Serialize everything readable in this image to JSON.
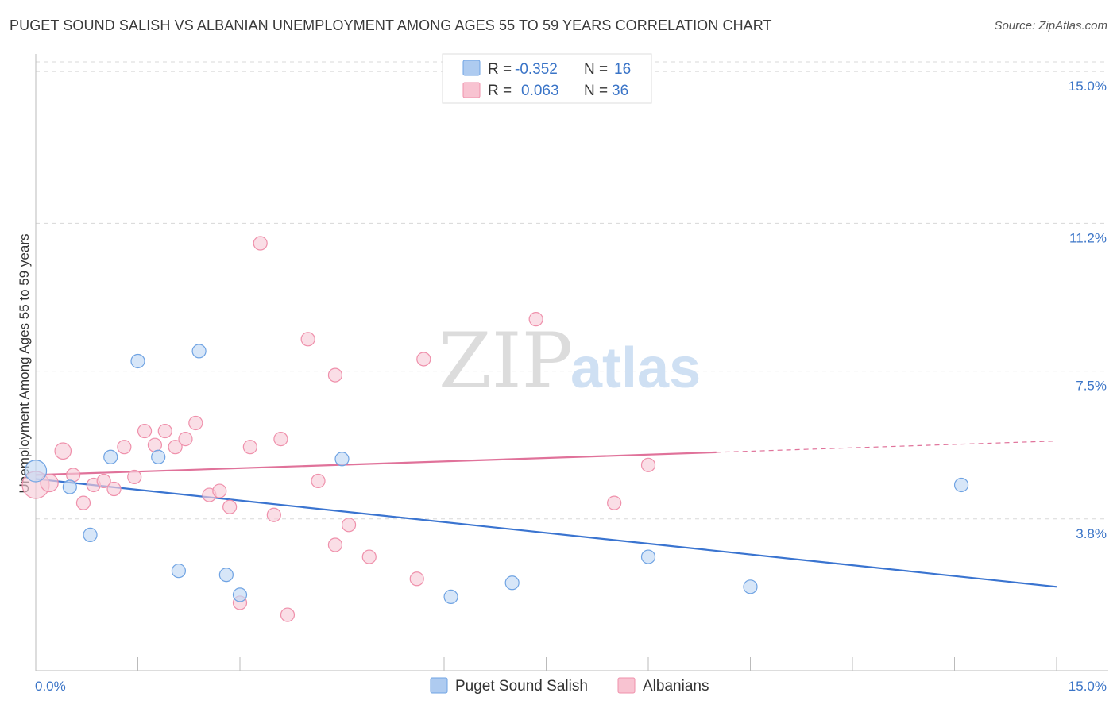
{
  "title": "PUGET SOUND SALISH VS ALBANIAN UNEMPLOYMENT AMONG AGES 55 TO 59 YEARS CORRELATION CHART",
  "source": "Source: ZipAtlas.com",
  "watermark": {
    "zip": "ZIP",
    "atlas": "atlas"
  },
  "legend": {
    "rows": [
      {
        "r_label": "R =",
        "r_value": "-0.352",
        "n_label": "N =",
        "n_value": "16",
        "color": "#aecbf0"
      },
      {
        "r_label": "R =",
        "r_value": "0.063",
        "n_label": "N =",
        "n_value": "36",
        "color": "#f8c3d1"
      }
    ]
  },
  "chart_data": {
    "type": "scatter",
    "title": "PUGET SOUND SALISH VS ALBANIAN UNEMPLOYMENT AMONG AGES 55 TO 59 YEARS CORRELATION CHART",
    "xlabel": "",
    "ylabel": "Unemployment Among Ages 55 to 59 years",
    "xlim": [
      0,
      15
    ],
    "ylim": [
      0,
      15.4
    ],
    "x_ticks": [
      "0.0%",
      "15.0%"
    ],
    "y_ticks": [
      {
        "value": 3.8,
        "label": "3.8%"
      },
      {
        "value": 7.5,
        "label": "7.5%"
      },
      {
        "value": 11.2,
        "label": "11.2%"
      },
      {
        "value": 15.0,
        "label": "15.0%"
      }
    ],
    "grid": true,
    "legend_position": "bottom",
    "series": [
      {
        "name": "Puget Sound Salish",
        "color": "#6fa3e3",
        "fill": "#c2d8f4",
        "points": [
          [
            0.0,
            5.0
          ],
          [
            0.5,
            4.6
          ],
          [
            0.8,
            3.4
          ],
          [
            1.1,
            5.35
          ],
          [
            1.5,
            7.75
          ],
          [
            1.8,
            5.35
          ],
          [
            2.1,
            2.5
          ],
          [
            2.4,
            8.0
          ],
          [
            2.8,
            2.4
          ],
          [
            3.0,
            1.9
          ],
          [
            4.5,
            5.3
          ],
          [
            6.1,
            1.85
          ],
          [
            7.0,
            2.2
          ],
          [
            9.0,
            2.85
          ],
          [
            10.5,
            2.1
          ],
          [
            13.6,
            4.65
          ]
        ],
        "sizes": [
          1.6,
          1,
          1,
          1,
          1,
          1,
          1,
          1,
          1,
          1,
          1,
          1,
          1,
          1,
          1,
          1
        ],
        "trend": {
          "x": [
            0.0,
            15.0
          ],
          "y": [
            4.8,
            2.1
          ],
          "dashed_from": null
        }
      },
      {
        "name": "Albanians",
        "color": "#ef90ab",
        "fill": "#f8ccd8",
        "points": [
          [
            0.0,
            4.65
          ],
          [
            0.2,
            4.7
          ],
          [
            0.4,
            5.5
          ],
          [
            0.55,
            4.9
          ],
          [
            0.7,
            4.2
          ],
          [
            0.85,
            4.65
          ],
          [
            1.0,
            4.75
          ],
          [
            1.15,
            4.55
          ],
          [
            1.3,
            5.6
          ],
          [
            1.45,
            4.85
          ],
          [
            1.6,
            6.0
          ],
          [
            1.75,
            5.65
          ],
          [
            1.9,
            6.0
          ],
          [
            2.05,
            5.6
          ],
          [
            2.2,
            5.8
          ],
          [
            2.35,
            6.2
          ],
          [
            2.55,
            4.4
          ],
          [
            2.7,
            4.5
          ],
          [
            2.85,
            4.1
          ],
          [
            3.15,
            5.6
          ],
          [
            3.3,
            10.7
          ],
          [
            3.5,
            3.9
          ],
          [
            3.6,
            5.8
          ],
          [
            3.7,
            1.4
          ],
          [
            4.0,
            8.3
          ],
          [
            4.15,
            4.75
          ],
          [
            4.4,
            3.15
          ],
          [
            4.4,
            7.4
          ],
          [
            4.6,
            3.65
          ],
          [
            4.9,
            2.85
          ],
          [
            5.6,
            2.3
          ],
          [
            5.7,
            7.8
          ],
          [
            7.35,
            8.8
          ],
          [
            8.5,
            4.2
          ],
          [
            9.0,
            5.15
          ],
          [
            3.0,
            1.7
          ]
        ],
        "sizes": [
          2.0,
          1.3,
          1.2,
          1,
          1,
          1,
          1,
          1,
          1,
          1,
          1,
          1,
          1,
          1,
          1,
          1,
          1,
          1,
          1,
          1,
          1,
          1,
          1,
          1,
          1,
          1,
          1,
          1,
          1,
          1,
          1,
          1,
          1,
          1,
          1,
          1
        ],
        "trend": {
          "x": [
            0.0,
            15.0
          ],
          "y": [
            4.9,
            5.75
          ],
          "dashed_from": 10.0
        }
      }
    ]
  },
  "bottom_legend": {
    "items": [
      {
        "label": "Puget Sound Salish",
        "color": "#aecbf0",
        "stroke": "#6fa3e3"
      },
      {
        "label": "Albanians",
        "color": "#f8c3d1",
        "stroke": "#ef90ab"
      }
    ]
  }
}
